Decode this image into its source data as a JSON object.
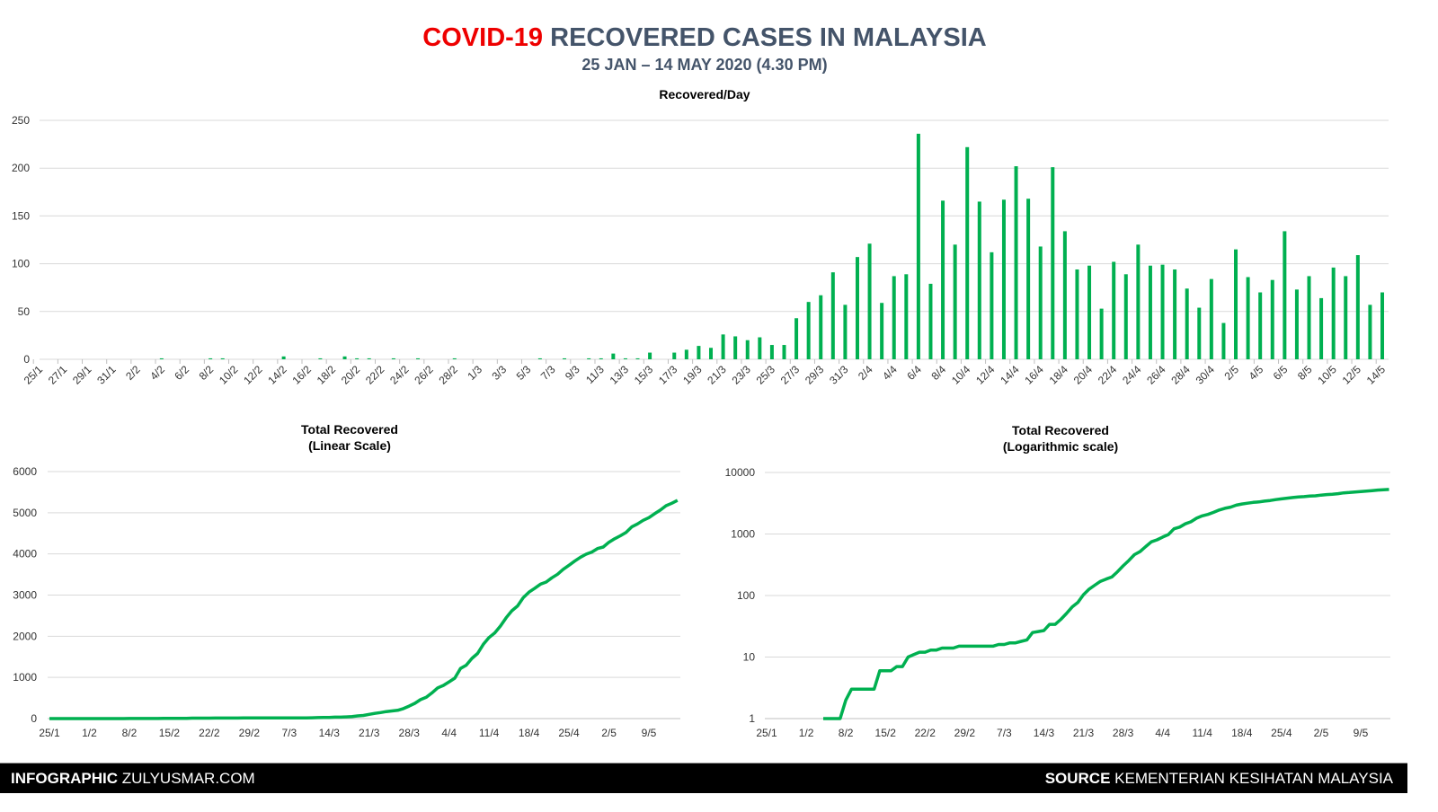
{
  "header": {
    "title_highlight": "COVID-19",
    "title_rest": "RECOVERED CASES IN MALAYSIA",
    "subtitle": "25 JAN – 14 MAY 2020 (4.30 PM)",
    "highlight_color": "#ee0000",
    "title_color": "#44546a"
  },
  "footer": {
    "left_bold": "INFOGRAPHIC",
    "left_text": "ZULYUSMAR.COM",
    "right_bold": "SOURCE",
    "right_text": "KEMENTERIAN KESIHATAN MALAYSIA"
  },
  "chart_data": [
    {
      "type": "bar",
      "title": "Recovered/Day",
      "start_date": "25/1/2020",
      "x_tick_labels": [
        "25/1",
        "27/1",
        "29/1",
        "31/1",
        "2/2",
        "4/2",
        "6/2",
        "8/2",
        "10/2",
        "12/2",
        "14/2",
        "16/2",
        "18/2",
        "20/2",
        "22/2",
        "24/2",
        "26/2",
        "28/2",
        "1/3",
        "3/3",
        "5/3",
        "7/3",
        "9/3",
        "11/3",
        "13/3",
        "15/3",
        "17/3",
        "19/3",
        "21/3",
        "23/3",
        "25/3",
        "27/3",
        "29/3",
        "31/3",
        "2/4",
        "4/4",
        "6/4",
        "8/4",
        "10/4",
        "12/4",
        "14/4",
        "16/4",
        "18/4",
        "20/4",
        "22/4",
        "24/4",
        "26/4",
        "28/4",
        "30/4",
        "2/5",
        "4/5",
        "6/5",
        "8/5",
        "10/5",
        "12/5",
        "14/5"
      ],
      "y_ticks": [
        0,
        50,
        100,
        150,
        200,
        250
      ],
      "ylim": [
        0,
        250
      ],
      "values": [
        0,
        0,
        0,
        0,
        0,
        0,
        0,
        0,
        0,
        0,
        1,
        0,
        0,
        0,
        1,
        1,
        0,
        0,
        0,
        0,
        3,
        0,
        0,
        1,
        0,
        3,
        1,
        1,
        0,
        1,
        0,
        1,
        0,
        0,
        1,
        0,
        0,
        0,
        0,
        0,
        0,
        1,
        0,
        1,
        0,
        1,
        1,
        6,
        1,
        1,
        7,
        0,
        7,
        10,
        14,
        12,
        26,
        24,
        20,
        23,
        15,
        15,
        43,
        60,
        67,
        91,
        57,
        107,
        121,
        59,
        87,
        89,
        236,
        79,
        166,
        120,
        222,
        165,
        112,
        167,
        202,
        168,
        118,
        201,
        134,
        94,
        98,
        53,
        102,
        89,
        120,
        98,
        99,
        94,
        74,
        54,
        84,
        38,
        115,
        86,
        70,
        83,
        134,
        73,
        87,
        64,
        96,
        87,
        109,
        57,
        70
      ],
      "color": "#00b050",
      "grid": true
    },
    {
      "type": "line",
      "title": "Total Recovered",
      "subtitle": "(Linear Scale)",
      "x_tick_labels": [
        "25/1",
        "1/2",
        "8/2",
        "15/2",
        "22/2",
        "29/2",
        "7/3",
        "14/3",
        "21/3",
        "28/3",
        "4/4",
        "11/4",
        "18/4",
        "25/4",
        "2/5",
        "9/5"
      ],
      "y_ticks": [
        0,
        1000,
        2000,
        3000,
        4000,
        5000,
        6000
      ],
      "ylim": [
        0,
        6000
      ],
      "series_source": "cumulative sum of Recovered/Day",
      "color": "#00b050"
    },
    {
      "type": "line",
      "title": "Total Recovered",
      "subtitle": "(Logarithmic scale)",
      "x_tick_labels": [
        "25/1",
        "1/2",
        "8/2",
        "15/2",
        "22/2",
        "29/2",
        "7/3",
        "14/3",
        "21/3",
        "28/3",
        "4/4",
        "11/4",
        "18/4",
        "25/4",
        "2/5",
        "9/5"
      ],
      "y_ticks": [
        "1",
        "10",
        "100",
        "1000",
        "10000"
      ],
      "ylim": [
        1,
        10000
      ],
      "yscale": "log",
      "series_source": "cumulative sum of Recovered/Day",
      "color": "#00b050"
    }
  ]
}
